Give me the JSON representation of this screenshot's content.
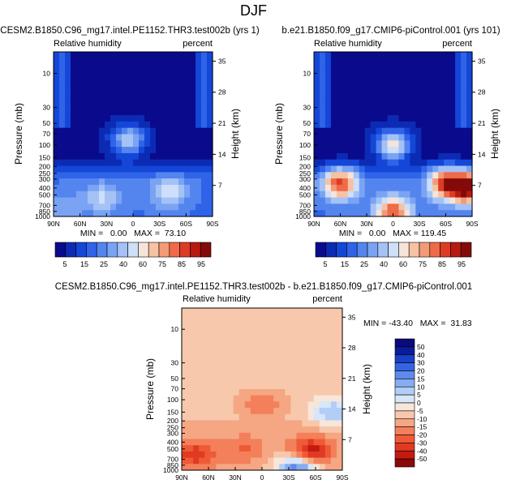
{
  "figure": {
    "main_title": "DJF"
  },
  "chart_data": [
    {
      "id": "test",
      "type": "heatmap",
      "title": "CESM2.B1850.C96_mg17.intel.PE1152.THR3.test002b (yrs 1)",
      "left_label": "Relative humidity",
      "right_label": "percent",
      "ylabel": "Pressure (mb)",
      "y2label": "Height (km)",
      "x_ticks": [
        "90N",
        "60N",
        "30N",
        "0",
        "30S",
        "60S",
        "90S"
      ],
      "y_ticks": [
        "10",
        "30",
        "50",
        "70",
        "100",
        "150",
        "200",
        "250",
        "300",
        "400",
        "500",
        "700",
        "850",
        "1000"
      ],
      "y2_ticks": [
        "35",
        "28",
        "21",
        "14",
        "7"
      ],
      "stats": "MIN =   0.00   MAX =  73.10",
      "colorbar_ticks": [
        "5",
        "15",
        "25",
        "40",
        "60",
        "75",
        "85",
        "95"
      ],
      "colorbar_colors": [
        "#0a0a8c",
        "#0c2bb4",
        "#1446d7",
        "#2f63e8",
        "#5485ef",
        "#7aa4f3",
        "#a4c2f6",
        "#cddff9",
        "#f6e4da",
        "#f6c2a4",
        "#f39a76",
        "#ee6a48",
        "#dd3c24",
        "#b81a10",
        "#840a0a"
      ],
      "zlim": [
        0,
        100
      ],
      "blobs": [
        {
          "lat": 5,
          "plev": 85,
          "value": 48
        },
        {
          "lat": -40,
          "plev": 450,
          "value": 45
        },
        {
          "lat": 35,
          "plev": 550,
          "value": 40
        },
        {
          "lat": 75,
          "plev": 750,
          "value": 30
        }
      ]
    },
    {
      "id": "control",
      "type": "heatmap",
      "title": "b.e21.B1850.f09_g17.CMIP6-piControl.001 (yrs 101)",
      "left_label": "Relative humidity",
      "right_label": "percent",
      "ylabel": "Pressure (mb)",
      "y2label": "Height (km)",
      "x_ticks": [
        "90N",
        "60N",
        "30N",
        "0",
        "30S",
        "60S",
        "90S"
      ],
      "y_ticks": [
        "10",
        "30",
        "50",
        "70",
        "100",
        "150",
        "200",
        "250",
        "300",
        "400",
        "500",
        "700",
        "850",
        "1000"
      ],
      "y2_ticks": [
        "35",
        "28",
        "21",
        "14",
        "7"
      ],
      "stats": "MIN =   0.00   MAX = 119.45",
      "colorbar_ticks": [
        "5",
        "15",
        "25",
        "40",
        "60",
        "75",
        "85",
        "95"
      ],
      "colorbar_colors": [
        "#0a0a8c",
        "#0c2bb4",
        "#1446d7",
        "#2f63e8",
        "#5485ef",
        "#7aa4f3",
        "#a4c2f6",
        "#cddff9",
        "#f6e4da",
        "#f6c2a4",
        "#f39a76",
        "#ee6a48",
        "#dd3c24",
        "#b81a10",
        "#840a0a"
      ],
      "zlim": [
        0,
        100
      ],
      "blobs": [
        {
          "lat": 0,
          "plev": 100,
          "value": 60
        },
        {
          "lat": 60,
          "plev": 350,
          "value": 80
        },
        {
          "lat": -60,
          "plev": 350,
          "value": 80
        },
        {
          "lat": -85,
          "plev": 400,
          "value": 95
        },
        {
          "lat": 0,
          "plev": 850,
          "value": 75
        }
      ]
    },
    {
      "id": "difference",
      "type": "heatmap",
      "title": "CESM2.B1850.C96_mg17.intel.PE1152.THR3.test002b - b.e21.B1850.f09_g17.CMIP6-piControl.001",
      "left_label": "Relative humidity",
      "right_label": "percent",
      "ylabel": "Pressure (mb)",
      "y2label": "Height (km)",
      "x_ticks": [
        "90N",
        "60N",
        "30N",
        "0",
        "30S",
        "60S",
        "90S"
      ],
      "y_ticks": [
        "10",
        "30",
        "50",
        "70",
        "100",
        "150",
        "200",
        "250",
        "300",
        "400",
        "500",
        "700",
        "850",
        "1000"
      ],
      "y2_ticks": [
        "35",
        "28",
        "21",
        "14",
        "7"
      ],
      "stats": "MIN = -43.40   MAX =  31.83",
      "colorbar_ticks": [
        "50",
        "40",
        "30",
        "20",
        "15",
        "10",
        "5",
        "0",
        "-5",
        "-10",
        "-15",
        "-20",
        "-30",
        "-40",
        "-50"
      ],
      "colorbar_colors": [
        "#8a0a0a",
        "#c41a12",
        "#e03a22",
        "#ef5a36",
        "#f3805a",
        "#f5a682",
        "#f7c8ac",
        "#f7e6da",
        "#d8e6fa",
        "#b2cdf6",
        "#86adf1",
        "#5e8aeb",
        "#3564e2",
        "#1840c8",
        "#0a1c9c",
        "#0a0a7c"
      ],
      "zlim": [
        -50,
        50
      ],
      "blobs": [
        {
          "lat": 0,
          "plev": 120,
          "value": -25
        },
        {
          "lat": 20,
          "plev": 500,
          "value": -22
        },
        {
          "lat": -55,
          "plev": 550,
          "value": -40
        },
        {
          "lat": 75,
          "plev": 600,
          "value": -32
        },
        {
          "lat": -80,
          "plev": 150,
          "value": 12
        },
        {
          "lat": -40,
          "plev": 950,
          "value": 30
        }
      ]
    }
  ]
}
